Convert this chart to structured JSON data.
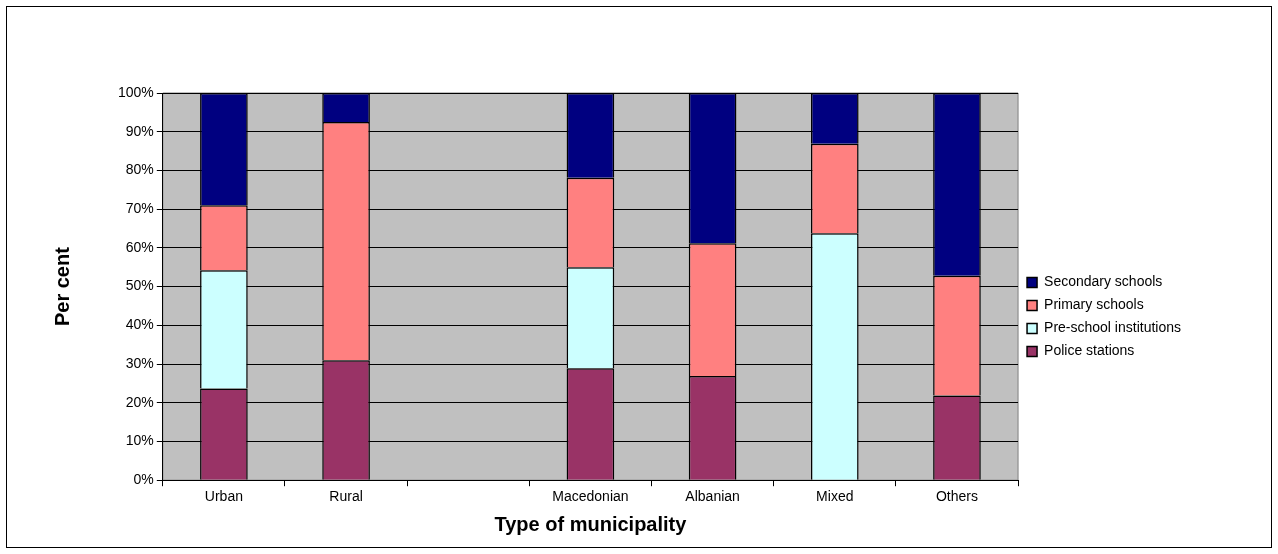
{
  "chart_data": {
    "type": "bar",
    "stacked": true,
    "xlabel": "Type of municipality",
    "ylabel": "Per cent",
    "categories": [
      "Urban",
      "Rural",
      null,
      "Macedonian",
      "Albanian",
      "Mixed",
      "Others"
    ],
    "series": [
      {
        "name": "Police stations",
        "color": "#993366",
        "values": [
          23.7,
          31.0,
          null,
          28.9,
          26.9,
          0,
          21.9
        ]
      },
      {
        "name": "Pre-school institutions",
        "color": "#ccffff",
        "values": [
          30.5,
          0,
          null,
          26.1,
          0,
          63.8,
          0
        ]
      },
      {
        "name": "Primary schools",
        "color": "#ff8080",
        "values": [
          16.8,
          61.5,
          null,
          23.1,
          34.3,
          23.1,
          30.9
        ]
      },
      {
        "name": "Secondary schools",
        "color": "#000080",
        "values": [
          29.0,
          7.5,
          null,
          21.9,
          38.8,
          13.1,
          47.2
        ]
      }
    ],
    "ylim": [
      0,
      100
    ],
    "yticks": [
      {
        "value": 0,
        "label": "0%"
      },
      {
        "value": 10,
        "label": "10%"
      },
      {
        "value": 20,
        "label": "20%"
      },
      {
        "value": 30,
        "label": "30%"
      },
      {
        "value": 40,
        "label": "40%"
      },
      {
        "value": 50,
        "label": "50%"
      },
      {
        "value": 60,
        "label": "60%"
      },
      {
        "value": 70,
        "label": "70%"
      },
      {
        "value": 80,
        "label": "80%"
      },
      {
        "value": 90,
        "label": "90%"
      },
      {
        "value": 100,
        "label": "100%"
      }
    ],
    "grid": "y",
    "legend": "right"
  }
}
